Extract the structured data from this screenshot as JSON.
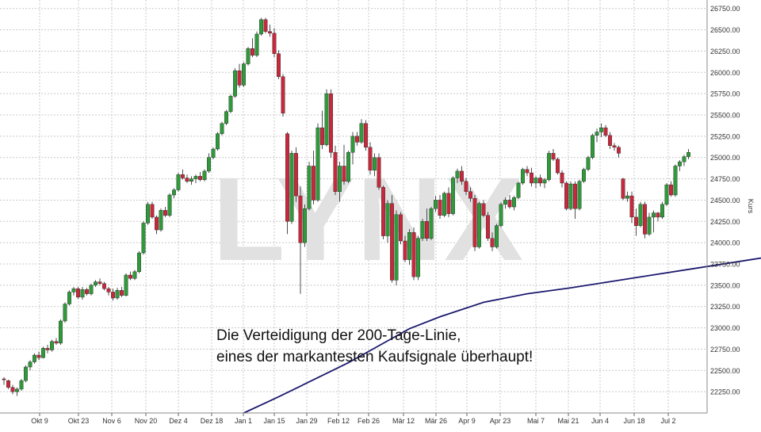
{
  "chart_data": {
    "type": "candlestick",
    "title": "",
    "ylabel": "Kurs",
    "ylim": [
      22000,
      26850
    ],
    "y_ticks": [
      22250,
      22500,
      22750,
      23000,
      23250,
      23500,
      23750,
      24000,
      24250,
      24500,
      24750,
      25000,
      25250,
      25500,
      25750,
      26000,
      26250,
      26500,
      26750
    ],
    "y_tick_labels": [
      "22250.00",
      "22500.00",
      "22750.00",
      "23000.00",
      "23250.00",
      "23500.00",
      "23750.00",
      "24000.00",
      "24250.00",
      "24500.00",
      "24750.00",
      "25000.00",
      "25250.00",
      "25500.00",
      "25750.00",
      "26000.00",
      "26250.00",
      "26500.00",
      "26750.00"
    ],
    "x_tick_labels": [
      "Okt 9",
      "Okt 23",
      "Nov 6",
      "Nov 20",
      "Dez 4",
      "Dez 18",
      "Jan 1",
      "Jan 15",
      "Jan 29",
      "Feb 12",
      "Feb 26",
      "Mär 12",
      "Mär 26",
      "Apr 9",
      "Apr 23",
      "Mai 7",
      "Mai 21",
      "Jun 4",
      "Jun 18",
      "Jul 2"
    ],
    "annotation_lines": [
      "Die Verteidigung der 200-Tage-Linie,",
      "eines der markantesten Kaufsignale überhaupt!"
    ],
    "watermark": "LYNX",
    "grid": true,
    "colors": {
      "up": "#2e9a3a",
      "down": "#c8283c",
      "ma": "#1c1a6e",
      "grid": "#c8c8c8",
      "text": "#333333"
    },
    "series": [
      {
        "name": "200-Tage-Linie",
        "type": "line",
        "points": [
          [
            55,
            22000
          ],
          [
            63,
            22190
          ],
          [
            71,
            22390
          ],
          [
            79,
            22590
          ],
          [
            86,
            22790
          ],
          [
            93,
            22990
          ],
          [
            100,
            23130
          ],
          [
            110,
            23300
          ],
          [
            120,
            23400
          ],
          [
            130,
            23470
          ],
          [
            140,
            23550
          ],
          [
            150,
            23630
          ],
          [
            160,
            23710
          ],
          [
            170,
            23790
          ],
          [
            180,
            23870
          ],
          [
            190,
            23940
          ],
          [
            200,
            24000
          ],
          [
            208,
            24070
          ],
          [
            218,
            24150
          ],
          [
            228,
            24210
          ],
          [
            240,
            24270
          ],
          [
            250,
            24330
          ],
          [
            259,
            24380
          ],
          [
            265,
            24430
          ]
        ]
      }
    ],
    "candles": [
      [
        0,
        22400,
        22420,
        22330,
        22390
      ],
      [
        1,
        22380,
        22390,
        22280,
        22300
      ],
      [
        2,
        22300,
        22330,
        22220,
        22250
      ],
      [
        3,
        22250,
        22300,
        22200,
        22280
      ],
      [
        4,
        22280,
        22400,
        22260,
        22380
      ],
      [
        5,
        22380,
        22560,
        22360,
        22540
      ],
      [
        6,
        22540,
        22620,
        22500,
        22600
      ],
      [
        7,
        22600,
        22700,
        22580,
        22680
      ],
      [
        8,
        22680,
        22720,
        22620,
        22650
      ],
      [
        9,
        22650,
        22780,
        22640,
        22760
      ],
      [
        10,
        22760,
        22800,
        22700,
        22740
      ],
      [
        11,
        22740,
        22860,
        22720,
        22840
      ],
      [
        12,
        22840,
        22880,
        22800,
        22820
      ],
      [
        13,
        22820,
        23100,
        22800,
        23080
      ],
      [
        14,
        23080,
        23300,
        23060,
        23280
      ],
      [
        15,
        23280,
        23440,
        23260,
        23420
      ],
      [
        16,
        23420,
        23480,
        23380,
        23460
      ],
      [
        17,
        23460,
        23480,
        23340,
        23360
      ],
      [
        18,
        23360,
        23480,
        23330,
        23450
      ],
      [
        19,
        23450,
        23470,
        23380,
        23400
      ],
      [
        20,
        23400,
        23520,
        23380,
        23500
      ],
      [
        21,
        23500,
        23560,
        23480,
        23540
      ],
      [
        22,
        23540,
        23580,
        23500,
        23520
      ],
      [
        23,
        23520,
        23540,
        23440,
        23460
      ],
      [
        24,
        23460,
        23480,
        23380,
        23420
      ],
      [
        25,
        23420,
        23460,
        23320,
        23350
      ],
      [
        26,
        23350,
        23470,
        23330,
        23440
      ],
      [
        27,
        23440,
        23480,
        23360,
        23380
      ],
      [
        28,
        23380,
        23640,
        23370,
        23620
      ],
      [
        29,
        23620,
        23660,
        23560,
        23580
      ],
      [
        30,
        23580,
        23680,
        23560,
        23660
      ],
      [
        31,
        23660,
        23900,
        23640,
        23880
      ],
      [
        32,
        23880,
        24250,
        23860,
        24230
      ],
      [
        33,
        24230,
        24480,
        24210,
        24450
      ],
      [
        34,
        24450,
        24480,
        24280,
        24300
      ],
      [
        35,
        24300,
        24320,
        24100,
        24150
      ],
      [
        36,
        24150,
        24400,
        24130,
        24380
      ],
      [
        37,
        24380,
        24420,
        24300,
        24320
      ],
      [
        38,
        24320,
        24580,
        24300,
        24560
      ],
      [
        39,
        24560,
        24640,
        24520,
        24620
      ],
      [
        40,
        24620,
        24820,
        24600,
        24800
      ],
      [
        41,
        24800,
        24860,
        24740,
        24760
      ],
      [
        42,
        24760,
        24800,
        24700,
        24720
      ],
      [
        43,
        24720,
        24780,
        24680,
        24750
      ],
      [
        44,
        24750,
        24800,
        24700,
        24780
      ],
      [
        45,
        24780,
        24830,
        24720,
        24740
      ],
      [
        46,
        24740,
        24860,
        24720,
        24840
      ],
      [
        47,
        24840,
        25050,
        24820,
        25000
      ],
      [
        48,
        25000,
        25120,
        24980,
        25100
      ],
      [
        49,
        25100,
        25300,
        25080,
        25280
      ],
      [
        50,
        25280,
        25420,
        25260,
        25400
      ],
      [
        51,
        25400,
        25560,
        25380,
        25540
      ],
      [
        52,
        25540,
        25740,
        25520,
        25720
      ],
      [
        53,
        25720,
        26050,
        25700,
        26020
      ],
      [
        54,
        26020,
        26100,
        25820,
        25850
      ],
      [
        55,
        25850,
        26120,
        25830,
        26100
      ],
      [
        56,
        26100,
        26300,
        26080,
        26280
      ],
      [
        57,
        26280,
        26400,
        26180,
        26200
      ],
      [
        58,
        26200,
        26480,
        26180,
        26450
      ],
      [
        59,
        26450,
        26640,
        26430,
        26620
      ],
      [
        60,
        26620,
        26640,
        26460,
        26480
      ],
      [
        61,
        26480,
        26560,
        26420,
        26460
      ],
      [
        62,
        26460,
        26520,
        26180,
        26220
      ],
      [
        63,
        26220,
        26260,
        25920,
        25950
      ],
      [
        64,
        25950,
        25980,
        25480,
        25520
      ],
      [
        65,
        25280,
        25300,
        24100,
        24250
      ],
      [
        66,
        24250,
        25080,
        24220,
        25050
      ],
      [
        67,
        25050,
        25120,
        24480,
        24550
      ],
      [
        68,
        24550,
        24660,
        23400,
        24000
      ],
      [
        69,
        24000,
        24450,
        23950,
        24400
      ],
      [
        70,
        24400,
        24950,
        24380,
        24900
      ],
      [
        71,
        24900,
        25080,
        24450,
        24500
      ],
      [
        72,
        24500,
        25400,
        24480,
        25350
      ],
      [
        73,
        25350,
        25550,
        25100,
        25150
      ],
      [
        74,
        25150,
        25800,
        25130,
        25750
      ],
      [
        75,
        25750,
        25800,
        25000,
        25060
      ],
      [
        76,
        25060,
        25140,
        24560,
        24600
      ],
      [
        77,
        24600,
        24950,
        24480,
        24900
      ],
      [
        78,
        24900,
        25150,
        24680,
        24720
      ],
      [
        79,
        24720,
        25080,
        24700,
        25060
      ],
      [
        80,
        25060,
        25300,
        24920,
        25250
      ],
      [
        81,
        25250,
        25300,
        25140,
        25180
      ],
      [
        82,
        25180,
        25450,
        25160,
        25400
      ],
      [
        83,
        25400,
        25440,
        25080,
        25120
      ],
      [
        84,
        25120,
        25180,
        24800,
        24850
      ],
      [
        85,
        24850,
        25050,
        24780,
        25000
      ],
      [
        86,
        25000,
        25050,
        24620,
        24650
      ],
      [
        87,
        24650,
        24670,
        24040,
        24080
      ],
      [
        88,
        24080,
        24500,
        24000,
        24460
      ],
      [
        89,
        24460,
        24560,
        23530,
        23560
      ],
      [
        90,
        23560,
        24380,
        23500,
        24330
      ],
      [
        91,
        24330,
        24360,
        23980,
        24020
      ],
      [
        92,
        24020,
        24080,
        23770,
        23800
      ],
      [
        93,
        23800,
        24160,
        23740,
        24120
      ],
      [
        94,
        24120,
        24180,
        23560,
        23600
      ],
      [
        95,
        23600,
        24080,
        23560,
        24050
      ],
      [
        96,
        24050,
        24280,
        24020,
        24250
      ],
      [
        97,
        24250,
        24400,
        24020,
        24050
      ],
      [
        98,
        24050,
        24420,
        24030,
        24400
      ],
      [
        99,
        24400,
        24550,
        24360,
        24500
      ],
      [
        100,
        24500,
        24560,
        24280,
        24320
      ],
      [
        101,
        24320,
        24600,
        24300,
        24580
      ],
      [
        102,
        24580,
        24650,
        24300,
        24340
      ],
      [
        103,
        24340,
        24780,
        24320,
        24760
      ],
      [
        104,
        24760,
        24870,
        24700,
        24840
      ],
      [
        105,
        24840,
        24900,
        24680,
        24720
      ],
      [
        106,
        24720,
        24760,
        24560,
        24600
      ],
      [
        107,
        24600,
        24650,
        24480,
        24520
      ],
      [
        108,
        24520,
        24560,
        23900,
        23950
      ],
      [
        109,
        23950,
        24480,
        23930,
        24460
      ],
      [
        110,
        24460,
        24500,
        24300,
        24320
      ],
      [
        111,
        24320,
        24360,
        24020,
        24050
      ],
      [
        112,
        24050,
        24120,
        23900,
        23950
      ],
      [
        113,
        23950,
        24220,
        23930,
        24200
      ],
      [
        114,
        24200,
        24470,
        24180,
        24450
      ],
      [
        115,
        24450,
        24530,
        24400,
        24500
      ],
      [
        116,
        24500,
        24560,
        24400,
        24420
      ],
      [
        117,
        24420,
        24550,
        24380,
        24530
      ],
      [
        118,
        24530,
        24720,
        24510,
        24700
      ],
      [
        119,
        24700,
        24880,
        24680,
        24860
      ],
      [
        120,
        24860,
        24900,
        24780,
        24820
      ],
      [
        121,
        24820,
        24880,
        24660,
        24700
      ],
      [
        122,
        24700,
        24780,
        24640,
        24760
      ],
      [
        123,
        24760,
        24800,
        24660,
        24700
      ],
      [
        124,
        24700,
        24760,
        24640,
        24740
      ],
      [
        125,
        24740,
        25080,
        24720,
        25050
      ],
      [
        126,
        25050,
        25100,
        24960,
        24980
      ],
      [
        127,
        24980,
        25000,
        24800,
        24820
      ],
      [
        128,
        24820,
        24850,
        24650,
        24700
      ],
      [
        129,
        24700,
        24720,
        24380,
        24400
      ],
      [
        130,
        24400,
        24720,
        24380,
        24690
      ],
      [
        131,
        24690,
        24720,
        24280,
        24400
      ],
      [
        132,
        24400,
        24740,
        24380,
        24720
      ],
      [
        133,
        24720,
        24880,
        24700,
        24860
      ],
      [
        134,
        24860,
        25020,
        24840,
        25000
      ],
      [
        135,
        25000,
        25280,
        24980,
        25260
      ],
      [
        136,
        25260,
        25340,
        25180,
        25300
      ],
      [
        137,
        25300,
        25400,
        25240,
        25350
      ],
      [
        138,
        25350,
        25380,
        25240,
        25260
      ],
      [
        139,
        25260,
        25300,
        25100,
        25140
      ],
      [
        140,
        25140,
        25170,
        25080,
        25120
      ],
      [
        141,
        25120,
        25140,
        25000,
        25050
      ],
      [
        142,
        24750,
        24760,
        24500,
        24520
      ],
      [
        143,
        24520,
        24600,
        24480,
        24550
      ],
      [
        144,
        24550,
        24600,
        24230,
        24300
      ],
      [
        145,
        24300,
        24400,
        24080,
        24200
      ],
      [
        146,
        24200,
        24480,
        24180,
        24450
      ],
      [
        147,
        24450,
        24480,
        24050,
        24100
      ],
      [
        148,
        24100,
        24350,
        24080,
        24300
      ],
      [
        149,
        24300,
        24380,
        24120,
        24350
      ],
      [
        150,
        24350,
        24360,
        24250,
        24300
      ],
      [
        151,
        24300,
        24480,
        24280,
        24450
      ],
      [
        152,
        24450,
        24700,
        24430,
        24680
      ],
      [
        153,
        24680,
        24720,
        24540,
        24560
      ],
      [
        154,
        24560,
        24920,
        24540,
        24900
      ],
      [
        155,
        24900,
        24970,
        24840,
        24950
      ],
      [
        156,
        24950,
        25030,
        24900,
        25010
      ],
      [
        157,
        25010,
        25100,
        24980,
        25060
      ]
    ]
  }
}
